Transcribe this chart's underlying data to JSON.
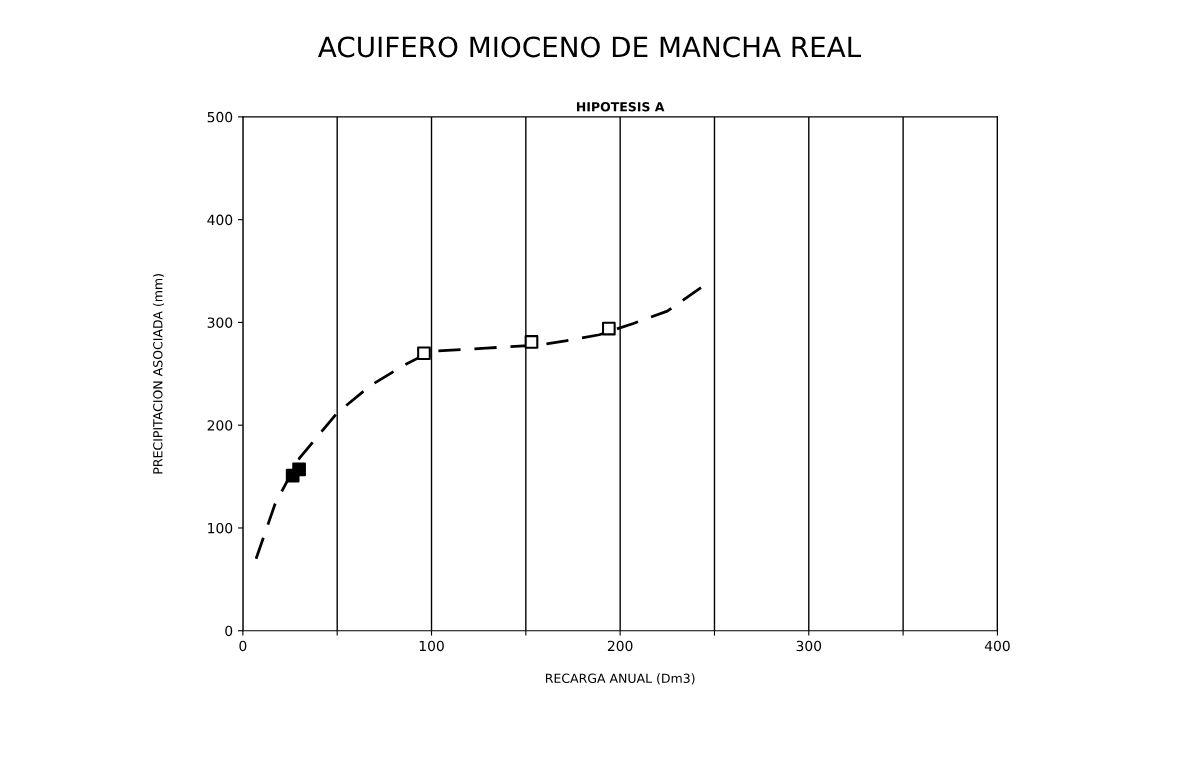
{
  "chart_data": {
    "type": "scatter",
    "title": "ACUIFERO MIOCENO DE MANCHA REAL",
    "subtitle": "HIPOTESIS A",
    "xlabel": "RECARGA ANUAL (Dm3)",
    "ylabel": "PRECIPITACION ASOCIADA (mm)",
    "xlim": [
      0,
      400
    ],
    "xticks": [
      0,
      {
        "value": 50,
        "label": null
      },
      100,
      {
        "value": 150,
        "label": null
      },
      200,
      {
        "value": 250,
        "label": null
      },
      300,
      {
        "value": 350,
        "label": null
      },
      400
    ],
    "ylim": [
      0,
      500
    ],
    "yticks": [
      0,
      100,
      200,
      300,
      400,
      500
    ],
    "grid": "x",
    "marker": "square",
    "series": [
      {
        "type": "line",
        "line_style": "dashed",
        "color": "#000000",
        "marker": "none",
        "x": [
          7,
          17,
          30,
          50,
          68,
          86,
          100,
          129,
          157,
          171,
          189,
          207,
          225,
          243
        ],
        "values": [
          70,
          123,
          168,
          212,
          239,
          259,
          272,
          275,
          278,
          282,
          288,
          299,
          311,
          334
        ]
      },
      {
        "color": "#000000",
        "x": [
          26.4,
          29.8
        ],
        "values": [
          151,
          157
        ]
      },
      {
        "color": "#ffffff",
        "x": [
          96,
          153,
          194
        ],
        "values": [
          270,
          281,
          294
        ]
      }
    ]
  }
}
